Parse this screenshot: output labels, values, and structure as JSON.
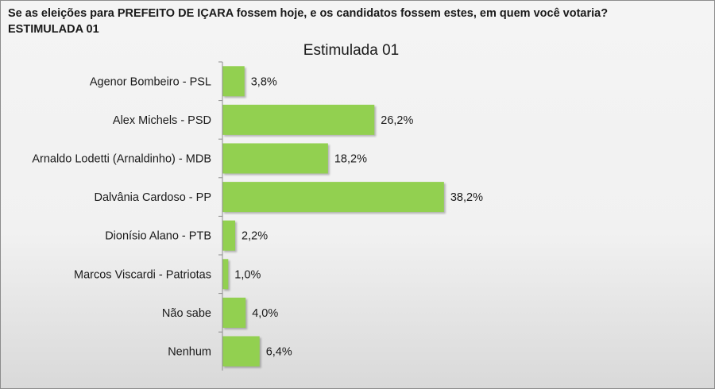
{
  "header": {
    "question_line1": "Se as eleições para PREFEITO DE IÇARA fossem hoje, e os candidatos fossem estes, em quem você votaria?",
    "question_line2": "ESTIMULADA 01"
  },
  "colors": {
    "bar": "#92d050",
    "axis": "#8c8c8c"
  },
  "chart_data": {
    "type": "bar",
    "orientation": "horizontal",
    "title": "Estimulada 01",
    "categories": [
      "Agenor Bombeiro - PSL",
      "Alex Michels - PSD",
      "Arnaldo Lodetti (Arnaldinho) - MDB",
      "Dalvânia Cardoso - PP",
      "Dionísio Alano - PTB",
      "Marcos Viscardi - Patriotas",
      "Não sabe",
      "Nenhum"
    ],
    "values": [
      3.8,
      26.2,
      18.2,
      38.2,
      2.2,
      1.0,
      4.0,
      6.4
    ],
    "value_labels": [
      "3,8%",
      "26,2%",
      "18,2%",
      "38,2%",
      "2,2%",
      "1,0%",
      "4,0%",
      "6,4%"
    ],
    "xlim": [
      0,
      100
    ],
    "grid": false,
    "legend": "none"
  }
}
